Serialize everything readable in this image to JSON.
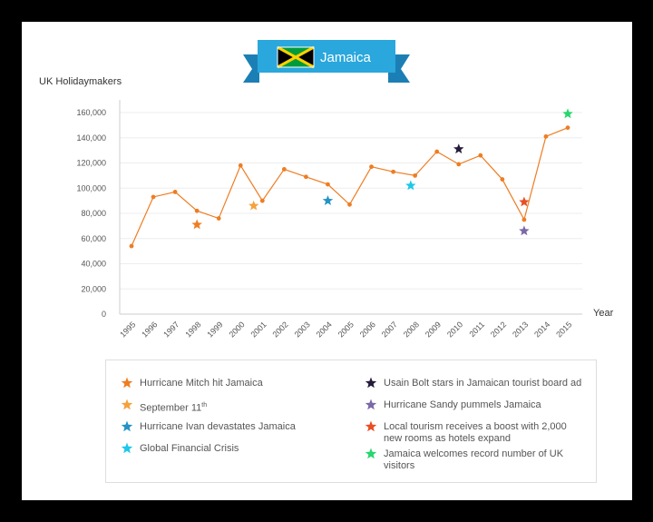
{
  "banner": {
    "title": "Jamaica",
    "flag_colors": {
      "green": "#009B3A",
      "gold": "#FED100",
      "black": "#000000"
    },
    "accent": "#2AA7DC"
  },
  "chart_data": {
    "type": "line",
    "title": "Jamaica",
    "ylabel": "UK Holidaymakers",
    "xlabel": "Year",
    "ylim": [
      0,
      160000
    ],
    "yticks": [
      0,
      20000,
      40000,
      60000,
      80000,
      100000,
      120000,
      140000,
      160000
    ],
    "ytick_labels": [
      "0",
      "20,000",
      "40,000",
      "60,000",
      "80,000",
      "100,000",
      "120,000",
      "140,000",
      "160,000"
    ],
    "categories": [
      "1995",
      "1996",
      "1997",
      "1998",
      "1999",
      "2000",
      "2001",
      "2002",
      "2003",
      "2004",
      "2005",
      "2006",
      "2007",
      "2008",
      "2009",
      "2010",
      "2011",
      "2012",
      "2013",
      "2014",
      "2015"
    ],
    "series": [
      {
        "name": "UK Holidaymakers",
        "color": "#EE7D22",
        "values": [
          54000,
          93000,
          97000,
          82000,
          76000,
          118000,
          90000,
          115000,
          109000,
          103000,
          87000,
          117000,
          113000,
          110000,
          129000,
          119000,
          126000,
          107000,
          75000,
          141000,
          148000
        ]
      }
    ],
    "events": [
      {
        "key": "mitch",
        "year": "1998",
        "value": 71000,
        "color": "#EE7D22"
      },
      {
        "key": "sept11",
        "year": "2000.6",
        "value": 86000,
        "color": "#F4A23C"
      },
      {
        "key": "ivan",
        "year": "2004",
        "value": 90000,
        "color": "#2493C6"
      },
      {
        "key": "crisis",
        "year": "2007.8",
        "value": 102000,
        "color": "#1EC8E8"
      },
      {
        "key": "bolt",
        "year": "2010",
        "value": 131000,
        "color": "#241C3A"
      },
      {
        "key": "sandy",
        "year": "2013",
        "value": 66000,
        "color": "#7B68A8"
      },
      {
        "key": "rooms",
        "year": "2013",
        "value": 89000,
        "color": "#E94E24"
      },
      {
        "key": "record",
        "year": "2015",
        "value": 159000,
        "color": "#27D66E"
      }
    ]
  },
  "legend": {
    "mitch": {
      "label": "Hurricane Mitch hit Jamaica",
      "color": "#EE7D22"
    },
    "sept11": {
      "label": "September 11",
      "sup": "th",
      "color": "#F4A23C"
    },
    "ivan": {
      "label": "Hurricane Ivan devastates Jamaica",
      "color": "#2493C6"
    },
    "crisis": {
      "label": "Global Financial Crisis",
      "color": "#1EC8E8"
    },
    "bolt": {
      "label": "Usain Bolt stars in Jamaican tourist board ad",
      "color": "#241C3A"
    },
    "sandy": {
      "label": "Hurricane Sandy pummels Jamaica",
      "color": "#7B68A8"
    },
    "rooms": {
      "label": "Local tourism receives a boost with 2,000 new rooms as hotels expand",
      "color": "#E94E24"
    },
    "record": {
      "label": "Jamaica welcomes record number of UK visitors",
      "color": "#27D66E"
    }
  }
}
